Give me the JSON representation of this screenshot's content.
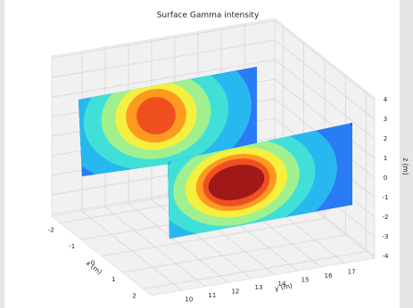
{
  "chart_data": {
    "type": "surface3d",
    "title": "Surface Gamma intensity",
    "xlabel": "x (m)",
    "ylabel": "y (m)",
    "zlabel": "z (m)",
    "xlim": [
      -2.4,
      2.4
    ],
    "ylim": [
      8.7,
      18.3
    ],
    "zlim": [
      -4.1,
      4.1
    ],
    "xticks": [
      -2,
      -1,
      0,
      1,
      2
    ],
    "yticks": [
      10,
      11,
      12,
      13,
      14,
      15,
      16,
      17
    ],
    "zticks": [
      -4,
      -3,
      -2,
      -1,
      0,
      1,
      2,
      3,
      4
    ],
    "grid": true
  }
}
